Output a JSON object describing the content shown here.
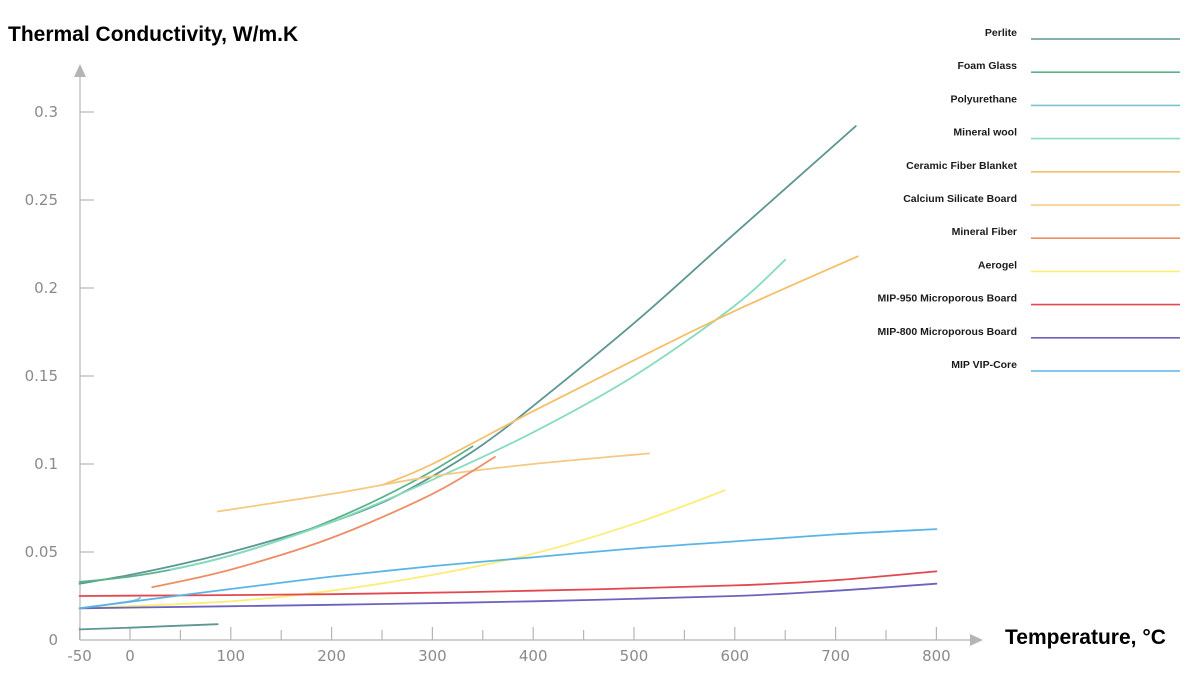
{
  "chart_data": {
    "type": "line",
    "ylabel": "Thermal Conductivity, W/m.K",
    "xlabel": "Temperature, °C",
    "xlim": [
      -50,
      800
    ],
    "ylim": [
      0,
      0.3
    ],
    "x_ticks": [
      -50,
      0,
      100,
      200,
      300,
      400,
      500,
      600,
      700,
      800
    ],
    "x_minor_ticks": [
      50,
      150,
      250,
      350,
      450,
      550,
      650,
      750
    ],
    "y_ticks": [
      0,
      0.05,
      0.1,
      0.15,
      0.2,
      0.25,
      0.3
    ],
    "y_tick_labels": [
      "0",
      "0.05",
      "0.1",
      "0.15",
      "0.2",
      "0.25",
      "0.3"
    ],
    "legend_position": "top-right",
    "series": [
      {
        "name": "Perlite",
        "color": "#5e9693",
        "x": [
          -50,
          0,
          50,
          100,
          150,
          200,
          250,
          300,
          350,
          400,
          500,
          600,
          720
        ],
        "y": [
          0.032,
          0.037,
          0.043,
          0.05,
          0.058,
          0.067,
          0.078,
          0.093,
          0.111,
          0.133,
          0.18,
          0.231,
          0.292
        ]
      },
      {
        "name": "Perlite",
        "color": "#5e9693",
        "x": [
          -50,
          0,
          87
        ],
        "y": [
          0.006,
          0.007,
          0.009
        ]
      },
      {
        "name": "Foam Glass",
        "color": "#5cb38b",
        "x": [
          -50,
          0,
          50,
          100,
          150,
          200,
          250,
          300,
          340
        ],
        "y": [
          0.033,
          0.036,
          0.041,
          0.048,
          0.057,
          0.068,
          0.081,
          0.096,
          0.11
        ]
      },
      {
        "name": "Polyurethane",
        "color": "#7cc3d6",
        "x": [
          -50,
          0,
          10
        ],
        "y": [
          0.018,
          0.022,
          0.024
        ]
      },
      {
        "name": "Mineral wool",
        "color": "#86dcbd",
        "x": [
          40,
          100,
          200,
          300,
          400,
          500,
          600,
          650
        ],
        "y": [
          0.04,
          0.048,
          0.067,
          0.091,
          0.118,
          0.15,
          0.19,
          0.216
        ]
      },
      {
        "name": "Ceramic Fiber Blanket",
        "color": "#f4bf6b",
        "x": [
          250,
          300,
          400,
          500,
          600,
          722
        ],
        "y": [
          0.088,
          0.1,
          0.13,
          0.159,
          0.187,
          0.218
        ]
      },
      {
        "name": "Calcium Silicate Board",
        "color": "#f5c982",
        "x": [
          87,
          200,
          300,
          400,
          515
        ],
        "y": [
          0.073,
          0.083,
          0.093,
          0.1,
          0.106
        ]
      },
      {
        "name": "Mineral Fiber",
        "color": "#ee8e66",
        "x": [
          22,
          100,
          200,
          300,
          362
        ],
        "y": [
          0.03,
          0.04,
          0.058,
          0.083,
          0.104
        ]
      },
      {
        "name": "Aerogel",
        "color": "#fbee77",
        "x": [
          -50,
          100,
          200,
          300,
          400,
          500,
          590
        ],
        "y": [
          0.018,
          0.022,
          0.028,
          0.037,
          0.049,
          0.066,
          0.085
        ]
      },
      {
        "name": "MIP-950 Microporous Board",
        "color": "#e3484f",
        "x": [
          -50,
          200,
          400,
          600,
          700,
          800
        ],
        "y": [
          0.025,
          0.026,
          0.028,
          0.031,
          0.034,
          0.039
        ]
      },
      {
        "name": "MIP-800 Microporous Board",
        "color": "#6e62bf",
        "x": [
          -50,
          200,
          400,
          600,
          700,
          800
        ],
        "y": [
          0.018,
          0.02,
          0.022,
          0.025,
          0.028,
          0.032
        ]
      },
      {
        "name": "MIP VIP-Core",
        "color": "#5ab5e6",
        "x": [
          -50,
          100,
          200,
          300,
          400,
          500,
          600,
          700,
          800
        ],
        "y": [
          0.018,
          0.029,
          0.036,
          0.042,
          0.047,
          0.052,
          0.056,
          0.06,
          0.063
        ]
      }
    ],
    "legend": [
      {
        "name": "Perlite",
        "color": "#5e9693"
      },
      {
        "name": "Foam Glass",
        "color": "#5cb38b"
      },
      {
        "name": "Polyurethane",
        "color": "#7cc3d6"
      },
      {
        "name": "Mineral wool",
        "color": "#86dcbd"
      },
      {
        "name": "Ceramic Fiber Blanket",
        "color": "#f4bf6b"
      },
      {
        "name": "Calcium Silicate Board",
        "color": "#f5c982"
      },
      {
        "name": "Mineral Fiber",
        "color": "#ee8e66"
      },
      {
        "name": "Aerogel",
        "color": "#fbee77"
      },
      {
        "name": "MIP-950 Microporous Board",
        "color": "#e3484f"
      },
      {
        "name": "MIP-800 Microporous Board",
        "color": "#6e62bf"
      },
      {
        "name": "MIP VIP-Core",
        "color": "#5ab5e6"
      }
    ]
  }
}
